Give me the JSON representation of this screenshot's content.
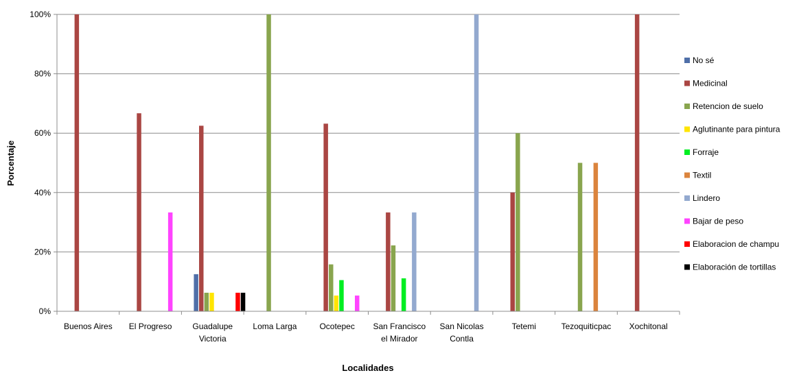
{
  "chart_data": {
    "type": "bar",
    "xlabel": "Localidades",
    "ylabel": "Porcentaje",
    "ylim": [
      0,
      100
    ],
    "yticks": [
      "0%",
      "20%",
      "40%",
      "60%",
      "80%",
      "100%"
    ],
    "grid": true,
    "legend_position": "right",
    "categories": [
      [
        "Buenos Aires"
      ],
      [
        "El Progreso"
      ],
      [
        "Guadalupe",
        "Victoria"
      ],
      [
        "Loma Larga"
      ],
      [
        "Ocotepec"
      ],
      [
        "San Francisco",
        "el Mirador"
      ],
      [
        "San Nicolas",
        "Contla"
      ],
      [
        "Tetemi"
      ],
      [
        "Tezoquiticpac"
      ],
      [
        "Xochitonal"
      ]
    ],
    "series": [
      {
        "name": "No sé",
        "color": "#4F6FA8",
        "values": [
          0,
          0,
          12.5,
          0,
          0,
          0,
          0,
          0,
          0,
          0
        ]
      },
      {
        "name": "Medicinal",
        "color": "#AA4643",
        "values": [
          100,
          66.7,
          62.5,
          0,
          63.2,
          33.3,
          0,
          40,
          0,
          100
        ]
      },
      {
        "name": "Retencion de suelo",
        "color": "#89A54E",
        "values": [
          0,
          0,
          6.25,
          100,
          15.8,
          22.2,
          0,
          60,
          50,
          0
        ]
      },
      {
        "name": "Aglutinante para pintura",
        "color": "#FFE500",
        "values": [
          0,
          0,
          6.25,
          0,
          5.3,
          0,
          0,
          0,
          0,
          0
        ]
      },
      {
        "name": "Forraje",
        "color": "#00EE22",
        "values": [
          0,
          0,
          0,
          0,
          10.5,
          11.1,
          0,
          0,
          0,
          0
        ]
      },
      {
        "name": "Textil",
        "color": "#DB843D",
        "values": [
          0,
          0,
          0,
          0,
          0,
          0,
          0,
          0,
          50,
          0
        ]
      },
      {
        "name": "Lindero",
        "color": "#93A9CF",
        "values": [
          0,
          0,
          0,
          0,
          0,
          33.3,
          100,
          0,
          0,
          0
        ]
      },
      {
        "name": "Bajar de peso",
        "color": "#FF44FF",
        "values": [
          0,
          33.3,
          0,
          0,
          5.3,
          0,
          0,
          0,
          0,
          0
        ]
      },
      {
        "name": "Elaboracion de champu",
        "color": "#FF0000",
        "values": [
          0,
          0,
          6.25,
          0,
          0,
          0,
          0,
          0,
          0,
          0
        ]
      },
      {
        "name": "Elaboración de tortillas",
        "color": "#000000",
        "values": [
          0,
          0,
          6.25,
          0,
          0,
          0,
          0,
          0,
          0,
          0
        ]
      }
    ]
  }
}
